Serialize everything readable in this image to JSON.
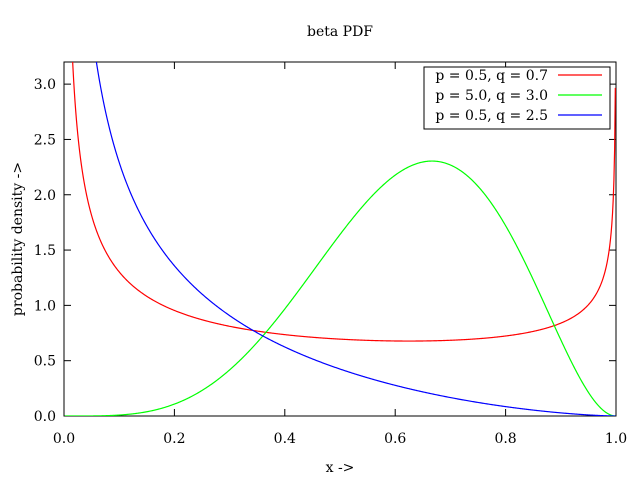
{
  "chart_data": {
    "type": "line",
    "title": "beta PDF",
    "xlabel": "x ->",
    "ylabel": "probability density ->",
    "xlim": [
      0.0,
      1.0
    ],
    "ylim": [
      0.0,
      3.2
    ],
    "xticks": [
      "0.0",
      "0.2",
      "0.4",
      "0.6",
      "0.8",
      "1.0"
    ],
    "yticks": [
      "0.0",
      "0.5",
      "1.0",
      "1.5",
      "2.0",
      "2.5",
      "3.0"
    ],
    "grid": false,
    "legend_position": "top-right",
    "series": [
      {
        "name": "p = 0.5, q = 0.7",
        "p": 0.5,
        "q": 0.7,
        "color": "#ff0000"
      },
      {
        "name": "p = 5.0, q = 3.0",
        "p": 5.0,
        "q": 3.0,
        "color": "#00ff00"
      },
      {
        "name": "p = 0.5, q = 2.5",
        "p": 0.5,
        "q": 2.5,
        "color": "#0000ff"
      }
    ]
  }
}
